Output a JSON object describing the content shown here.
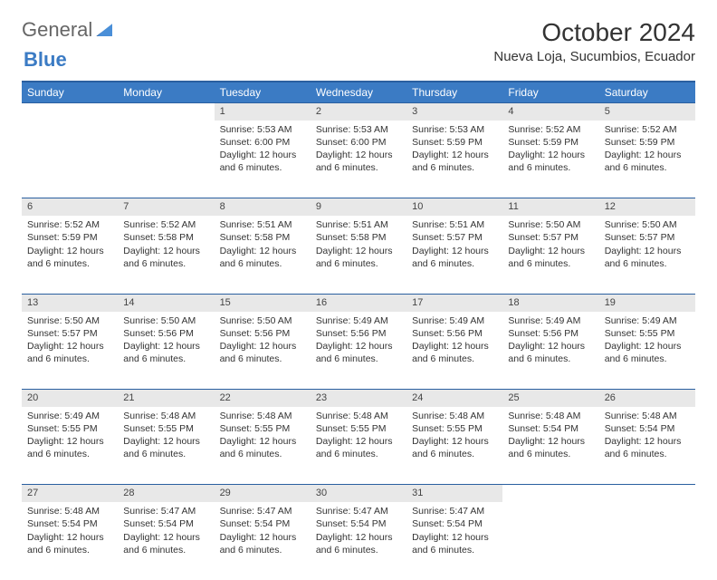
{
  "brand": {
    "part1": "General",
    "part2": "Blue"
  },
  "title": "October 2024",
  "location": "Nueva Loja, Sucumbios, Ecuador",
  "colors": {
    "header_bg": "#3b7bc4",
    "header_border": "#2a5fa0",
    "daynum_bg": "#e8e8e8"
  },
  "weekdays": [
    "Sunday",
    "Monday",
    "Tuesday",
    "Wednesday",
    "Thursday",
    "Friday",
    "Saturday"
  ],
  "weeks": [
    [
      null,
      null,
      {
        "n": "1",
        "sr": "5:53 AM",
        "ss": "6:00 PM",
        "dl": "12 hours and 6 minutes."
      },
      {
        "n": "2",
        "sr": "5:53 AM",
        "ss": "6:00 PM",
        "dl": "12 hours and 6 minutes."
      },
      {
        "n": "3",
        "sr": "5:53 AM",
        "ss": "5:59 PM",
        "dl": "12 hours and 6 minutes."
      },
      {
        "n": "4",
        "sr": "5:52 AM",
        "ss": "5:59 PM",
        "dl": "12 hours and 6 minutes."
      },
      {
        "n": "5",
        "sr": "5:52 AM",
        "ss": "5:59 PM",
        "dl": "12 hours and 6 minutes."
      }
    ],
    [
      {
        "n": "6",
        "sr": "5:52 AM",
        "ss": "5:59 PM",
        "dl": "12 hours and 6 minutes."
      },
      {
        "n": "7",
        "sr": "5:52 AM",
        "ss": "5:58 PM",
        "dl": "12 hours and 6 minutes."
      },
      {
        "n": "8",
        "sr": "5:51 AM",
        "ss": "5:58 PM",
        "dl": "12 hours and 6 minutes."
      },
      {
        "n": "9",
        "sr": "5:51 AM",
        "ss": "5:58 PM",
        "dl": "12 hours and 6 minutes."
      },
      {
        "n": "10",
        "sr": "5:51 AM",
        "ss": "5:57 PM",
        "dl": "12 hours and 6 minutes."
      },
      {
        "n": "11",
        "sr": "5:50 AM",
        "ss": "5:57 PM",
        "dl": "12 hours and 6 minutes."
      },
      {
        "n": "12",
        "sr": "5:50 AM",
        "ss": "5:57 PM",
        "dl": "12 hours and 6 minutes."
      }
    ],
    [
      {
        "n": "13",
        "sr": "5:50 AM",
        "ss": "5:57 PM",
        "dl": "12 hours and 6 minutes."
      },
      {
        "n": "14",
        "sr": "5:50 AM",
        "ss": "5:56 PM",
        "dl": "12 hours and 6 minutes."
      },
      {
        "n": "15",
        "sr": "5:50 AM",
        "ss": "5:56 PM",
        "dl": "12 hours and 6 minutes."
      },
      {
        "n": "16",
        "sr": "5:49 AM",
        "ss": "5:56 PM",
        "dl": "12 hours and 6 minutes."
      },
      {
        "n": "17",
        "sr": "5:49 AM",
        "ss": "5:56 PM",
        "dl": "12 hours and 6 minutes."
      },
      {
        "n": "18",
        "sr": "5:49 AM",
        "ss": "5:56 PM",
        "dl": "12 hours and 6 minutes."
      },
      {
        "n": "19",
        "sr": "5:49 AM",
        "ss": "5:55 PM",
        "dl": "12 hours and 6 minutes."
      }
    ],
    [
      {
        "n": "20",
        "sr": "5:49 AM",
        "ss": "5:55 PM",
        "dl": "12 hours and 6 minutes."
      },
      {
        "n": "21",
        "sr": "5:48 AM",
        "ss": "5:55 PM",
        "dl": "12 hours and 6 minutes."
      },
      {
        "n": "22",
        "sr": "5:48 AM",
        "ss": "5:55 PM",
        "dl": "12 hours and 6 minutes."
      },
      {
        "n": "23",
        "sr": "5:48 AM",
        "ss": "5:55 PM",
        "dl": "12 hours and 6 minutes."
      },
      {
        "n": "24",
        "sr": "5:48 AM",
        "ss": "5:55 PM",
        "dl": "12 hours and 6 minutes."
      },
      {
        "n": "25",
        "sr": "5:48 AM",
        "ss": "5:54 PM",
        "dl": "12 hours and 6 minutes."
      },
      {
        "n": "26",
        "sr": "5:48 AM",
        "ss": "5:54 PM",
        "dl": "12 hours and 6 minutes."
      }
    ],
    [
      {
        "n": "27",
        "sr": "5:48 AM",
        "ss": "5:54 PM",
        "dl": "12 hours and 6 minutes."
      },
      {
        "n": "28",
        "sr": "5:47 AM",
        "ss": "5:54 PM",
        "dl": "12 hours and 6 minutes."
      },
      {
        "n": "29",
        "sr": "5:47 AM",
        "ss": "5:54 PM",
        "dl": "12 hours and 6 minutes."
      },
      {
        "n": "30",
        "sr": "5:47 AM",
        "ss": "5:54 PM",
        "dl": "12 hours and 6 minutes."
      },
      {
        "n": "31",
        "sr": "5:47 AM",
        "ss": "5:54 PM",
        "dl": "12 hours and 6 minutes."
      },
      null,
      null
    ]
  ],
  "labels": {
    "sunrise": "Sunrise: ",
    "sunset": "Sunset: ",
    "daylight": "Daylight: "
  }
}
